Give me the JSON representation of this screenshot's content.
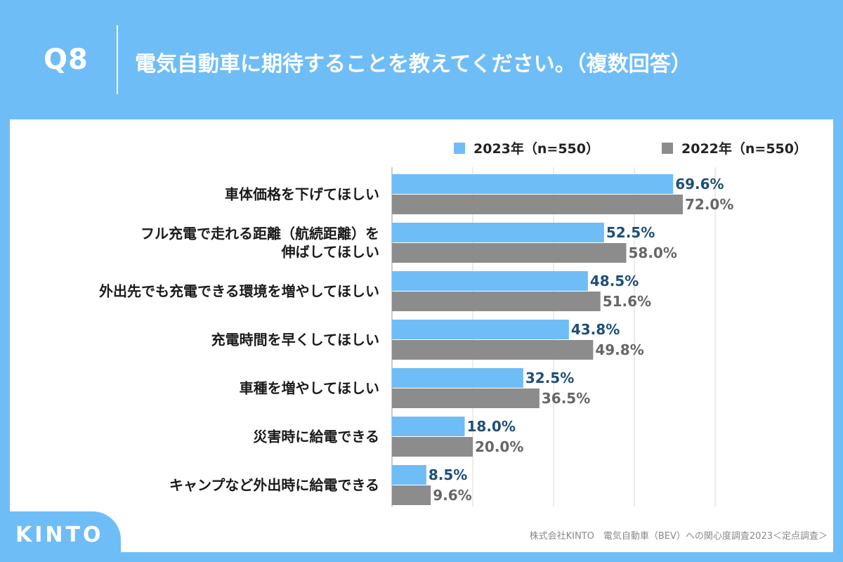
{
  "header": {
    "question_number": "Q8",
    "question_text": "電気自動車に期待することを教えてください。（複数回答）"
  },
  "logo": "KINTO",
  "source": "株式会社KINTO　電気自動車（BEV）への関心度調査2023＜定点調査＞",
  "colors": {
    "background": "#6fbdf7",
    "series_2023": "#6fbdf7",
    "series_2022": "#8c8c8c",
    "label_2023": "#1f4e79",
    "label_2022": "#666666"
  },
  "chart_data": {
    "type": "bar",
    "orientation": "horizontal",
    "categories": [
      [
        "車体価格を下げてほしい"
      ],
      [
        "フル充電で走れる距離（航続距離）を",
        "伸ばしてほしい"
      ],
      [
        "外出先でも充電できる環境を増やしてほしい"
      ],
      [
        "充電時間を早くしてほしい"
      ],
      [
        "車種を増やしてほしい"
      ],
      [
        "災害時に給電できる"
      ],
      [
        "キャンプなど外出時に給電できる"
      ]
    ],
    "series": [
      {
        "name": "2023年（n=550）",
        "values": [
          69.6,
          52.5,
          48.5,
          43.8,
          32.5,
          18.0,
          8.5
        ],
        "labels": [
          "69.6%",
          "52.5%",
          "48.5%",
          "43.8%",
          "32.5%",
          "18.0%",
          "8.5%"
        ]
      },
      {
        "name": "2022年（n=550）",
        "values": [
          72.0,
          58.0,
          51.6,
          49.8,
          36.5,
          20.0,
          9.6
        ],
        "labels": [
          "72.0%",
          "58.0%",
          "51.6%",
          "49.8%",
          "36.5%",
          "20.0%",
          "9.6%"
        ]
      }
    ],
    "xlim": [
      0,
      100
    ],
    "grid": true,
    "legend_position": "top-right",
    "title": "",
    "xlabel": "",
    "ylabel": ""
  }
}
